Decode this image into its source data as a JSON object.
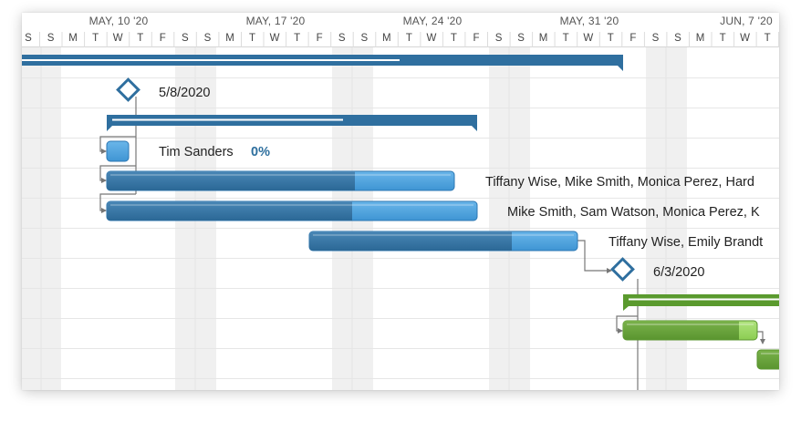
{
  "timeline": {
    "weeks": [
      "MAY, 10 '20",
      "MAY, 17 '20",
      "MAY, 24 '20",
      "MAY, 31 '20",
      "JUN, 7 '20"
    ],
    "day_letters": [
      "S",
      "S",
      "M",
      "T",
      "W",
      "T",
      "F",
      "S",
      "S",
      "M",
      "T",
      "W",
      "T",
      "F",
      "S",
      "S",
      "M",
      "T",
      "W",
      "T",
      "F",
      "S",
      "S",
      "M",
      "T",
      "W",
      "T",
      "F",
      "S",
      "S",
      "M",
      "T",
      "W",
      "T"
    ]
  },
  "tasks": {
    "milestone_1_date": "5/8/2020",
    "task_1_assignee": "Tim Sanders",
    "task_1_percent": "0%",
    "task_2_assignees": "Tiffany Wise, Mike Smith, Monica Perez, Hard",
    "task_3_assignees": "Mike Smith, Sam Watson, Monica Perez, K",
    "task_4_assignees": "Tiffany Wise, Emily Brandt",
    "milestone_2_date": "6/3/2020"
  },
  "colors": {
    "blue_dark": "#2f6f9f",
    "blue_light": "#4fa3dd",
    "green_dark": "#5a9a2e",
    "green_light": "#96d35f",
    "weekend_shade": "#f0f0f0"
  }
}
